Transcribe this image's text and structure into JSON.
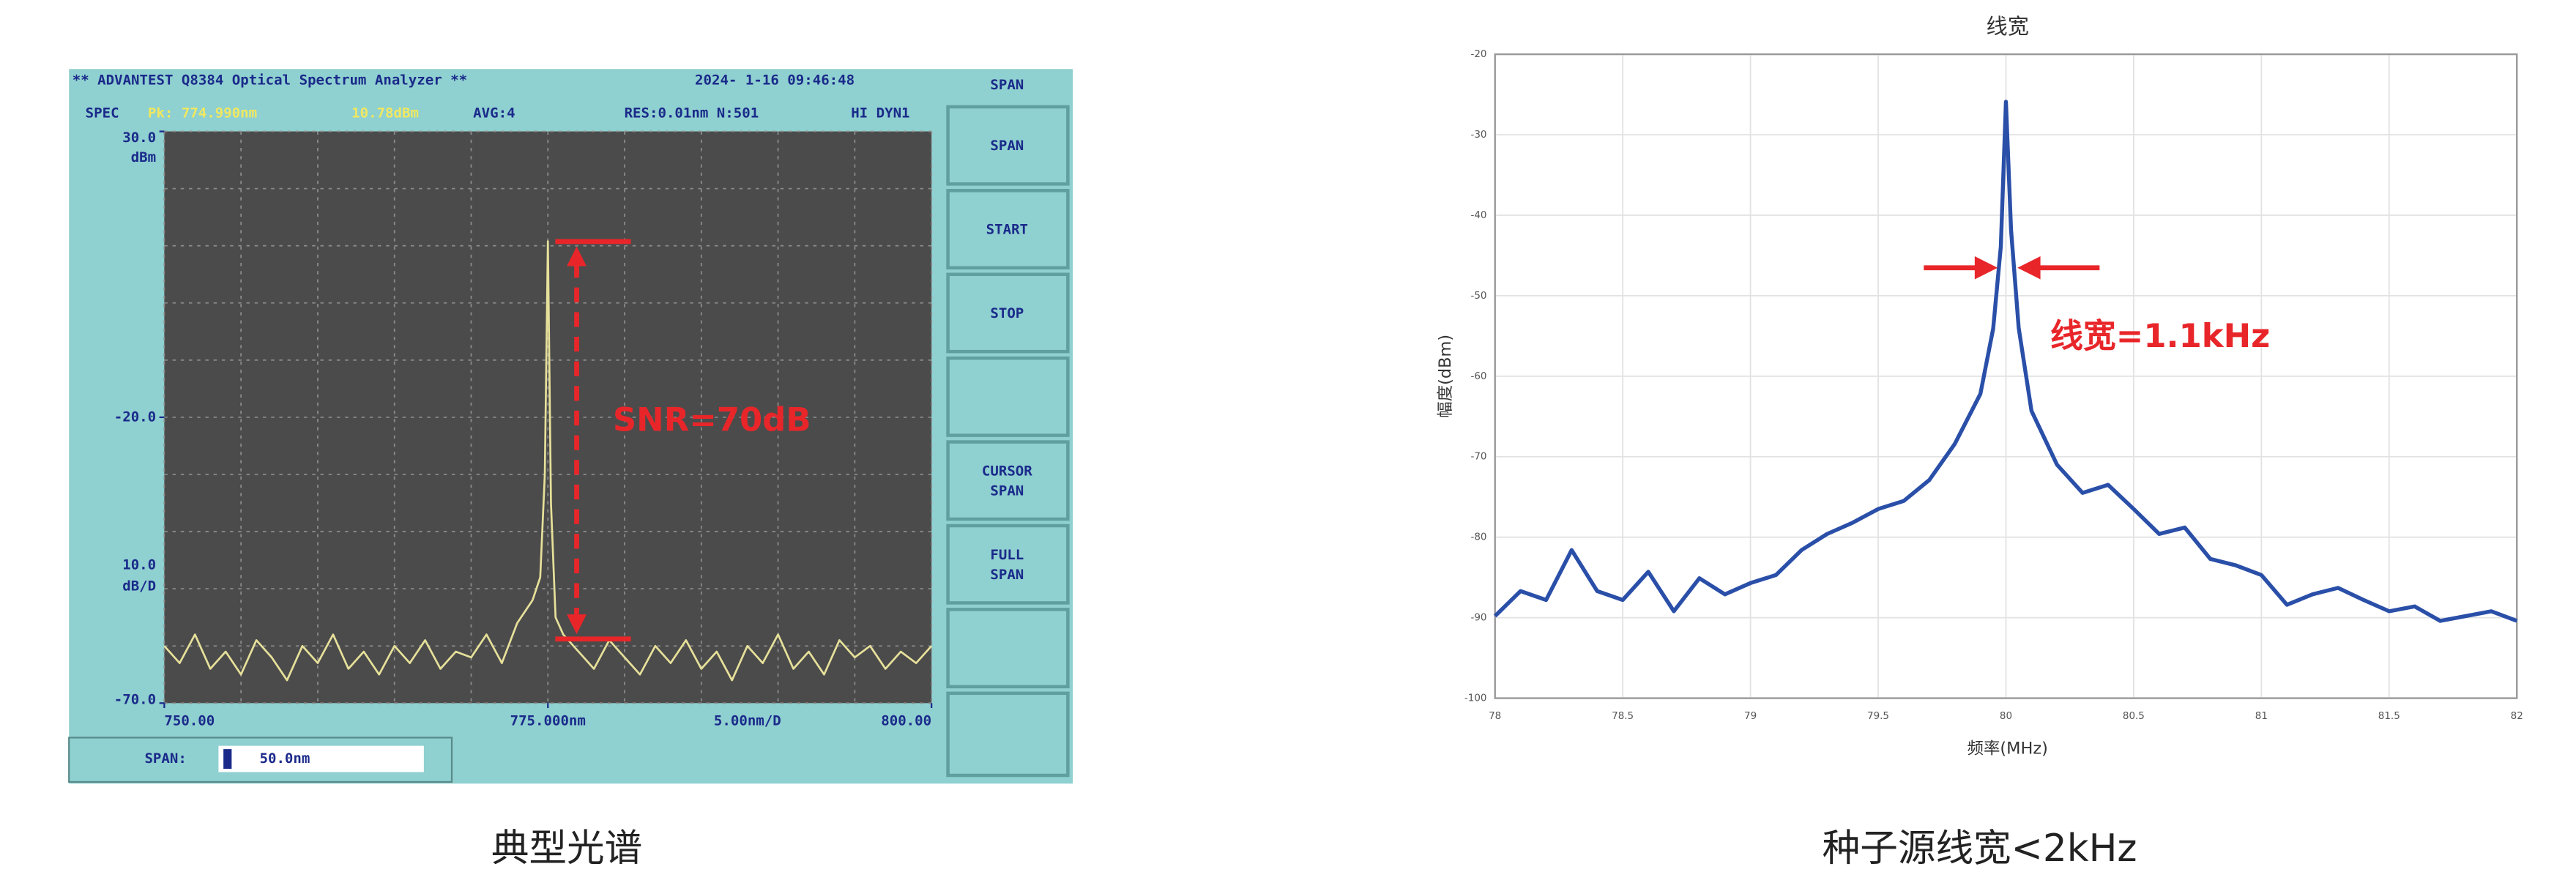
{
  "chart_data": [
    {
      "type": "line",
      "title": "** ADVANTEST Q8384 Optical Spectrum Analyzer **",
      "timestamp": "2024- 1-16 09:46:48",
      "status": [
        "SPEC",
        "Pk: 774.990nm",
        "10.78dBm",
        "AVG:4",
        "RES:0.01nm N:501",
        "HI DYN1"
      ],
      "y_unit": "dBm",
      "y_scale": "10.0",
      "y_scale_unit": "dB/D",
      "x_scale": "5.00nm/D",
      "span_label": "SPAN:",
      "span_value": "50.0nm",
      "menu_title": "SPAN",
      "buttons": [
        [
          "SPAN"
        ],
        [
          "START"
        ],
        [
          "STOP"
        ],
        [
          "CURSOR",
          "SPAN"
        ],
        [
          "FULL",
          "SPAN"
        ]
      ],
      "annotation": "SNR=70dB",
      "caption": "典型光谱",
      "color": "#e6e09a",
      "x": [
        750,
        751,
        752,
        753,
        754,
        755,
        756,
        757,
        758,
        759,
        760,
        761,
        762,
        763,
        764,
        765,
        766,
        767,
        768,
        769,
        770,
        771,
        772,
        773,
        774,
        774.5,
        774.8,
        775,
        775.2,
        775.5,
        776,
        777,
        778,
        779,
        780,
        781,
        782,
        783,
        784,
        785,
        786,
        787,
        788,
        789,
        790,
        791,
        792,
        793,
        794,
        795,
        796,
        797,
        798,
        799,
        800
      ],
      "values": [
        -60,
        -63,
        -58,
        -64,
        -61,
        -65,
        -59,
        -62,
        -66,
        -60,
        -63,
        -58,
        -64,
        -61,
        -65,
        -60,
        -63,
        -59,
        -64,
        -61,
        -62,
        -58,
        -63,
        -56,
        -52,
        -48,
        -30,
        10.78,
        -35,
        -55,
        -58,
        -61,
        -64,
        -59,
        -62,
        -65,
        -60,
        -63,
        -59,
        -64,
        -61,
        -66,
        -60,
        -63,
        -58,
        -64,
        -61,
        -65,
        -59,
        -62,
        -60,
        -64,
        -61,
        -63,
        -60
      ],
      "xlim": [
        750,
        800
      ],
      "ylim": [
        -70,
        30
      ],
      "xticks": [
        {
          "value": 750,
          "label": "750.00"
        },
        {
          "value": 775,
          "label": "775.000nm"
        },
        {
          "value": 800,
          "label": "800.00"
        }
      ],
      "yticks": [
        {
          "value": 30,
          "label": "30.0"
        },
        {
          "value": -20,
          "label": "-20.0"
        },
        {
          "value": -70,
          "label": "-70.0"
        }
      ],
      "xgrid": [
        750,
        755,
        760,
        765,
        770,
        775,
        780,
        785,
        790,
        795,
        800
      ],
      "ygrid": [
        30,
        20,
        10,
        0,
        -10,
        -20,
        -30,
        -40,
        -50,
        -60,
        -70
      ]
    },
    {
      "type": "line",
      "title": "线宽",
      "xlabel": "频率(MHz)",
      "ylabel": "幅度(dBm)",
      "annotation": "线宽=1.1kHz",
      "caption": "种子源线宽<2kHz",
      "color": "#2a4fa8",
      "x": [
        78,
        78.1,
        78.2,
        78.3,
        78.4,
        78.5,
        78.6,
        78.7,
        78.8,
        78.9,
        79,
        79.1,
        79.2,
        79.3,
        79.4,
        79.5,
        79.6,
        79.7,
        79.8,
        79.9,
        79.95,
        79.98,
        80,
        80.02,
        80.05,
        80.1,
        80.2,
        80.3,
        80.4,
        80.5,
        80.6,
        80.7,
        80.8,
        80.9,
        81,
        81.1,
        81.2,
        81.3,
        81.4,
        81.5,
        81.6,
        81.7,
        81.8,
        81.9,
        82
      ],
      "values": [
        -89.8,
        -86.7,
        -87.8,
        -81.6,
        -86.7,
        -87.8,
        -84.3,
        -89.2,
        -85.1,
        -87.1,
        -85.7,
        -84.7,
        -81.6,
        -79.6,
        -78.2,
        -76.5,
        -75.5,
        -72.9,
        -68.4,
        -62.2,
        -54.1,
        -43.9,
        -25.9,
        -41.8,
        -54,
        -64.3,
        -71,
        -74.5,
        -73.5,
        -76.5,
        -79.6,
        -78.8,
        -82.7,
        -83.5,
        -84.7,
        -88.4,
        -87.1,
        -86.3,
        -87.8,
        -89.2,
        -88.6,
        -90.4,
        -89.8,
        -89.2,
        -90.4
      ],
      "xlim": [
        78,
        82
      ],
      "ylim": [
        -100,
        -20
      ],
      "xticks": [
        78,
        78.5,
        79,
        79.5,
        80,
        80.5,
        81,
        81.5,
        82
      ],
      "yticks": [
        -20,
        -30,
        -40,
        -50,
        -60,
        -70,
        -80,
        -90,
        -100
      ],
      "grid": true
    }
  ]
}
